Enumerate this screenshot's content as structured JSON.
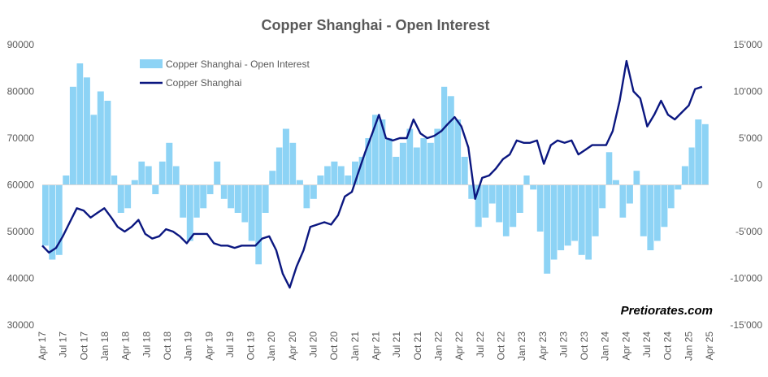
{
  "chart_data": {
    "type": "bar+line",
    "title": "Copper Shanghai - Open Interest",
    "watermark": "Pretiorates.com",
    "legend": {
      "placement": "top-left",
      "entries": [
        {
          "label": "Copper Shanghai - Open Interest",
          "kind": "bar",
          "color": "#8dd3f5"
        },
        {
          "label": "Copper Shanghai",
          "kind": "line",
          "color": "#0b1780"
        }
      ]
    },
    "x_axis": {
      "type": "date",
      "start": "2017-04-01",
      "end": "2025-04-30",
      "tick_labels": [
        "Apr 17",
        "Jul 17",
        "Oct 17",
        "Jan 18",
        "Apr 18",
        "Jul 18",
        "Oct 18",
        "Jan 19",
        "Apr 19",
        "Jul 19",
        "Oct 19",
        "Jan 20",
        "Apr 20",
        "Jul 20",
        "Oct 20",
        "Jan 21",
        "Apr 21",
        "Jul 21",
        "Oct 21",
        "Jan 22",
        "Apr 22",
        "Jul 22",
        "Oct 22",
        "Jan 23",
        "Apr 23",
        "Jul 23",
        "Oct 23",
        "Jan 24",
        "Apr 24",
        "Jul 24",
        "Oct 24",
        "Jan 25",
        "Apr 25"
      ]
    },
    "y_left": {
      "series": "Copper Shanghai",
      "range": [
        30000,
        90000
      ],
      "tick_labels": [
        "30000",
        "40000",
        "50000",
        "60000",
        "70000",
        "80000",
        "90000"
      ],
      "grid": false
    },
    "y_right": {
      "series": "Copper Shanghai - Open Interest",
      "range": [
        -15000,
        15000
      ],
      "tick_labels": [
        "-15'000",
        "-10'000",
        "-5'000",
        "0",
        "5'000",
        "10'000",
        "15'000"
      ],
      "grid": false
    },
    "series": [
      {
        "name": "Copper Shanghai",
        "axis": "left",
        "type": "line",
        "color": "#0b1780",
        "points": [
          [
            "2017-04-01",
            47000
          ],
          [
            "2017-05-01",
            45500
          ],
          [
            "2017-06-01",
            46500
          ],
          [
            "2017-07-01",
            49000
          ],
          [
            "2017-08-01",
            52000
          ],
          [
            "2017-09-01",
            55000
          ],
          [
            "2017-10-01",
            54500
          ],
          [
            "2017-11-01",
            53000
          ],
          [
            "2017-12-01",
            54000
          ],
          [
            "2018-01-01",
            55000
          ],
          [
            "2018-02-01",
            53000
          ],
          [
            "2018-03-01",
            51000
          ],
          [
            "2018-04-01",
            50000
          ],
          [
            "2018-05-01",
            51000
          ],
          [
            "2018-06-01",
            52500
          ],
          [
            "2018-07-01",
            49500
          ],
          [
            "2018-08-01",
            48500
          ],
          [
            "2018-09-01",
            49000
          ],
          [
            "2018-10-01",
            50500
          ],
          [
            "2018-11-01",
            50000
          ],
          [
            "2018-12-01",
            49000
          ],
          [
            "2019-01-01",
            47500
          ],
          [
            "2019-02-01",
            49500
          ],
          [
            "2019-03-01",
            49500
          ],
          [
            "2019-04-01",
            49500
          ],
          [
            "2019-05-01",
            47500
          ],
          [
            "2019-06-01",
            47000
          ],
          [
            "2019-07-01",
            47000
          ],
          [
            "2019-08-01",
            46500
          ],
          [
            "2019-09-01",
            47000
          ],
          [
            "2019-10-01",
            47000
          ],
          [
            "2019-11-01",
            47000
          ],
          [
            "2019-12-01",
            48500
          ],
          [
            "2020-01-01",
            49000
          ],
          [
            "2020-02-01",
            46000
          ],
          [
            "2020-03-01",
            41000
          ],
          [
            "2020-04-01",
            38000
          ],
          [
            "2020-05-01",
            42500
          ],
          [
            "2020-06-01",
            46000
          ],
          [
            "2020-07-01",
            51000
          ],
          [
            "2020-08-01",
            51500
          ],
          [
            "2020-09-01",
            52000
          ],
          [
            "2020-10-01",
            51500
          ],
          [
            "2020-11-01",
            53500
          ],
          [
            "2020-12-01",
            57500
          ],
          [
            "2021-01-01",
            58500
          ],
          [
            "2021-02-01",
            63000
          ],
          [
            "2021-03-01",
            67000
          ],
          [
            "2021-04-01",
            71000
          ],
          [
            "2021-05-01",
            75000
          ],
          [
            "2021-06-01",
            70000
          ],
          [
            "2021-07-01",
            69500
          ],
          [
            "2021-08-01",
            70000
          ],
          [
            "2021-09-01",
            70000
          ],
          [
            "2021-10-01",
            74000
          ],
          [
            "2021-11-01",
            71000
          ],
          [
            "2021-12-01",
            70000
          ],
          [
            "2022-01-01",
            70500
          ],
          [
            "2022-02-01",
            71500
          ],
          [
            "2022-03-01",
            73000
          ],
          [
            "2022-04-01",
            74500
          ],
          [
            "2022-05-01",
            72500
          ],
          [
            "2022-06-01",
            68000
          ],
          [
            "2022-07-01",
            57000
          ],
          [
            "2022-08-01",
            61500
          ],
          [
            "2022-09-01",
            62000
          ],
          [
            "2022-10-01",
            63500
          ],
          [
            "2022-11-01",
            65500
          ],
          [
            "2022-12-01",
            66500
          ],
          [
            "2023-01-01",
            69500
          ],
          [
            "2023-02-01",
            69000
          ],
          [
            "2023-03-01",
            69000
          ],
          [
            "2023-04-01",
            69500
          ],
          [
            "2023-05-01",
            64500
          ],
          [
            "2023-06-01",
            68500
          ],
          [
            "2023-07-01",
            69500
          ],
          [
            "2023-08-01",
            69000
          ],
          [
            "2023-09-01",
            69500
          ],
          [
            "2023-10-01",
            66500
          ],
          [
            "2023-11-01",
            67500
          ],
          [
            "2023-12-01",
            68500
          ],
          [
            "2024-01-01",
            68500
          ],
          [
            "2024-02-01",
            68500
          ],
          [
            "2024-03-01",
            71500
          ],
          [
            "2024-04-01",
            78000
          ],
          [
            "2024-05-01",
            86500
          ],
          [
            "2024-06-01",
            80000
          ],
          [
            "2024-07-01",
            78500
          ],
          [
            "2024-08-01",
            72500
          ],
          [
            "2024-09-01",
            75000
          ],
          [
            "2024-10-01",
            78000
          ],
          [
            "2024-11-01",
            75000
          ],
          [
            "2024-12-01",
            74000
          ],
          [
            "2025-01-01",
            75500
          ],
          [
            "2025-02-01",
            77000
          ],
          [
            "2025-03-01",
            80500
          ],
          [
            "2025-04-01",
            81000
          ]
        ]
      },
      {
        "name": "Copper Shanghai - Open Interest",
        "axis": "right",
        "type": "bar",
        "color": "#8dd3f5",
        "points": [
          [
            "2017-04-01",
            -6500
          ],
          [
            "2017-05-01",
            -8000
          ],
          [
            "2017-06-01",
            -7500
          ],
          [
            "2017-07-01",
            1000
          ],
          [
            "2017-08-01",
            10500
          ],
          [
            "2017-09-01",
            13000
          ],
          [
            "2017-10-01",
            11500
          ],
          [
            "2017-11-01",
            7500
          ],
          [
            "2017-12-01",
            10000
          ],
          [
            "2018-01-01",
            9000
          ],
          [
            "2018-02-01",
            1000
          ],
          [
            "2018-03-01",
            -3000
          ],
          [
            "2018-04-01",
            -2500
          ],
          [
            "2018-05-01",
            500
          ],
          [
            "2018-06-01",
            2500
          ],
          [
            "2018-07-01",
            2000
          ],
          [
            "2018-08-01",
            -1000
          ],
          [
            "2018-09-01",
            2500
          ],
          [
            "2018-10-01",
            4500
          ],
          [
            "2018-11-01",
            2000
          ],
          [
            "2018-12-01",
            -3500
          ],
          [
            "2019-01-01",
            -6000
          ],
          [
            "2019-02-01",
            -3500
          ],
          [
            "2019-03-01",
            -2500
          ],
          [
            "2019-04-01",
            -1000
          ],
          [
            "2019-05-01",
            2500
          ],
          [
            "2019-06-01",
            -1500
          ],
          [
            "2019-07-01",
            -2500
          ],
          [
            "2019-08-01",
            -3000
          ],
          [
            "2019-09-01",
            -4000
          ],
          [
            "2019-10-01",
            -6000
          ],
          [
            "2019-11-01",
            -8500
          ],
          [
            "2019-12-01",
            -3000
          ],
          [
            "2020-01-01",
            1500
          ],
          [
            "2020-02-01",
            4000
          ],
          [
            "2020-03-01",
            6000
          ],
          [
            "2020-04-01",
            4500
          ],
          [
            "2020-05-01",
            500
          ],
          [
            "2020-06-01",
            -2500
          ],
          [
            "2020-07-01",
            -1500
          ],
          [
            "2020-08-01",
            1000
          ],
          [
            "2020-09-01",
            2000
          ],
          [
            "2020-10-01",
            2500
          ],
          [
            "2020-11-01",
            2000
          ],
          [
            "2020-12-01",
            1000
          ],
          [
            "2021-01-01",
            2500
          ],
          [
            "2021-02-01",
            3000
          ],
          [
            "2021-03-01",
            5000
          ],
          [
            "2021-04-01",
            7500
          ],
          [
            "2021-05-01",
            7000
          ],
          [
            "2021-06-01",
            5000
          ],
          [
            "2021-07-01",
            3000
          ],
          [
            "2021-08-01",
            4500
          ],
          [
            "2021-09-01",
            6000
          ],
          [
            "2021-10-01",
            4000
          ],
          [
            "2021-11-01",
            5000
          ],
          [
            "2021-12-01",
            4500
          ],
          [
            "2022-01-01",
            6000
          ],
          [
            "2022-02-01",
            10500
          ],
          [
            "2022-03-01",
            9500
          ],
          [
            "2022-04-01",
            7000
          ],
          [
            "2022-05-01",
            3000
          ],
          [
            "2022-06-01",
            -1500
          ],
          [
            "2022-07-01",
            -4500
          ],
          [
            "2022-08-01",
            -3500
          ],
          [
            "2022-09-01",
            -2000
          ],
          [
            "2022-10-01",
            -4000
          ],
          [
            "2022-11-01",
            -5500
          ],
          [
            "2022-12-01",
            -4500
          ],
          [
            "2023-01-01",
            -3000
          ],
          [
            "2023-02-01",
            1000
          ],
          [
            "2023-03-01",
            -500
          ],
          [
            "2023-04-01",
            -5000
          ],
          [
            "2023-05-01",
            -9500
          ],
          [
            "2023-06-01",
            -8000
          ],
          [
            "2023-07-01",
            -7000
          ],
          [
            "2023-08-01",
            -6500
          ],
          [
            "2023-09-01",
            -6000
          ],
          [
            "2023-10-01",
            -7500
          ],
          [
            "2023-11-01",
            -8000
          ],
          [
            "2023-12-01",
            -5500
          ],
          [
            "2024-01-01",
            -2500
          ],
          [
            "2024-02-01",
            3500
          ],
          [
            "2024-03-01",
            500
          ],
          [
            "2024-04-01",
            -3500
          ],
          [
            "2024-05-01",
            -2000
          ],
          [
            "2024-06-01",
            1500
          ],
          [
            "2024-07-01",
            -5500
          ],
          [
            "2024-08-01",
            -7000
          ],
          [
            "2024-09-01",
            -6000
          ],
          [
            "2024-10-01",
            -4500
          ],
          [
            "2024-11-01",
            -2500
          ],
          [
            "2024-12-01",
            -500
          ],
          [
            "2025-01-01",
            2000
          ],
          [
            "2025-02-01",
            4000
          ],
          [
            "2025-03-01",
            7000
          ],
          [
            "2025-04-01",
            6500
          ]
        ]
      }
    ]
  }
}
